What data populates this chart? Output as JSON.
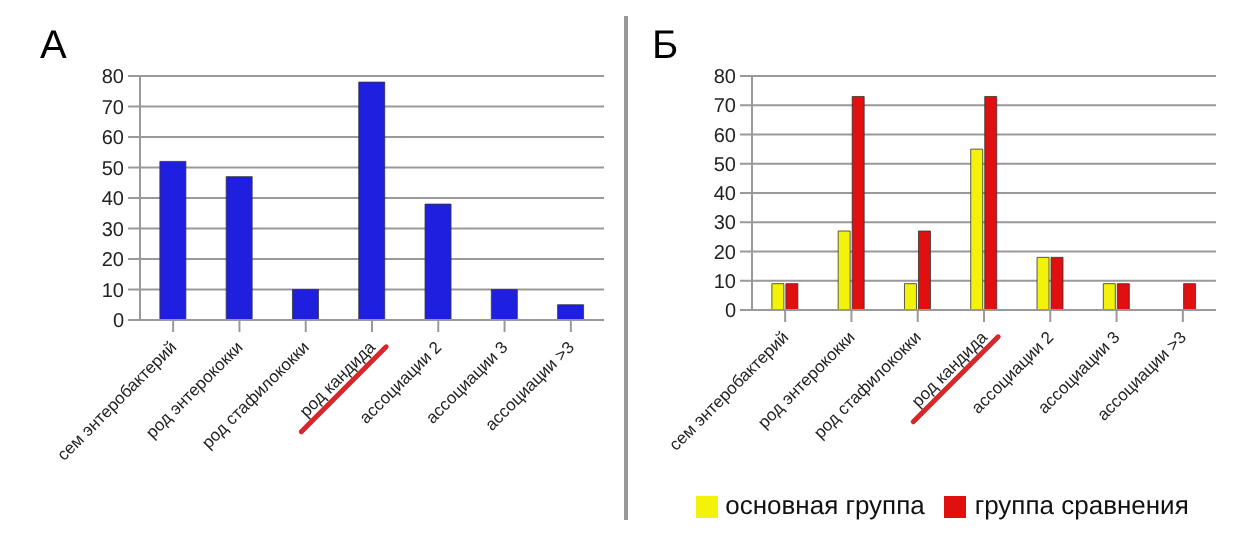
{
  "chart_data": [
    {
      "type": "bar",
      "title": "А",
      "categories": [
        "сем энтеробактерий",
        "род энтерококки",
        "род стафилококки",
        "род кандида",
        "ассоциации 2",
        "ассоциации 3",
        "ассоциации >3"
      ],
      "values": [
        52,
        47,
        10,
        78,
        38,
        10,
        5
      ],
      "color": "#1f1fe0",
      "ylim": [
        0,
        80
      ],
      "yticks": [
        0,
        10,
        20,
        30,
        40,
        50,
        60,
        70,
        80
      ],
      "grid": "y",
      "legend": false
    },
    {
      "type": "bar",
      "title": "Б",
      "categories": [
        "сем энтеробактерий",
        "род энтерококки",
        "род стафилококки",
        "род кандида",
        "ассоциации 2",
        "ассоциации 3",
        "ассоциации >3"
      ],
      "series": [
        {
          "name": "основная группа",
          "color": "#f2f20a",
          "values": [
            9,
            27,
            9,
            55,
            18,
            9,
            0
          ]
        },
        {
          "name": "группа сравнения",
          "color": "#e01010",
          "values": [
            9,
            73,
            27,
            73,
            18,
            9,
            9
          ]
        }
      ],
      "ylim": [
        0,
        80
      ],
      "yticks": [
        0,
        10,
        20,
        30,
        40,
        50,
        60,
        70,
        80
      ],
      "grid": "y",
      "legend": "bottom"
    }
  ]
}
